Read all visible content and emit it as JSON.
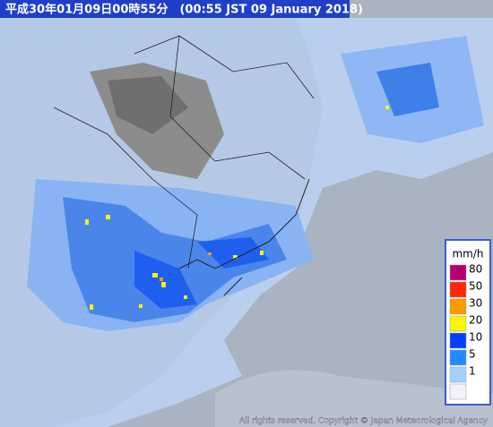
{
  "header": {
    "title": "平成30年01月09日00時55分　(00:55 JST 09 January 2018)"
  },
  "legend": {
    "unit": "mm/h",
    "items": [
      {
        "value": 80,
        "color": "#b4006e"
      },
      {
        "value": 50,
        "color": "#ff2800"
      },
      {
        "value": 30,
        "color": "#ff9900"
      },
      {
        "value": 20,
        "color": "#faf500"
      },
      {
        "value": 10,
        "color": "#0041ff"
      },
      {
        "value": 5,
        "color": "#218cff"
      },
      {
        "value": 1,
        "color": "#a0d2ff"
      },
      {
        "value": null,
        "color": "#f2f2ff"
      }
    ]
  },
  "footer": {
    "copyright": "All rights reserved. Copyright © Japan Meteorological Agency"
  }
}
